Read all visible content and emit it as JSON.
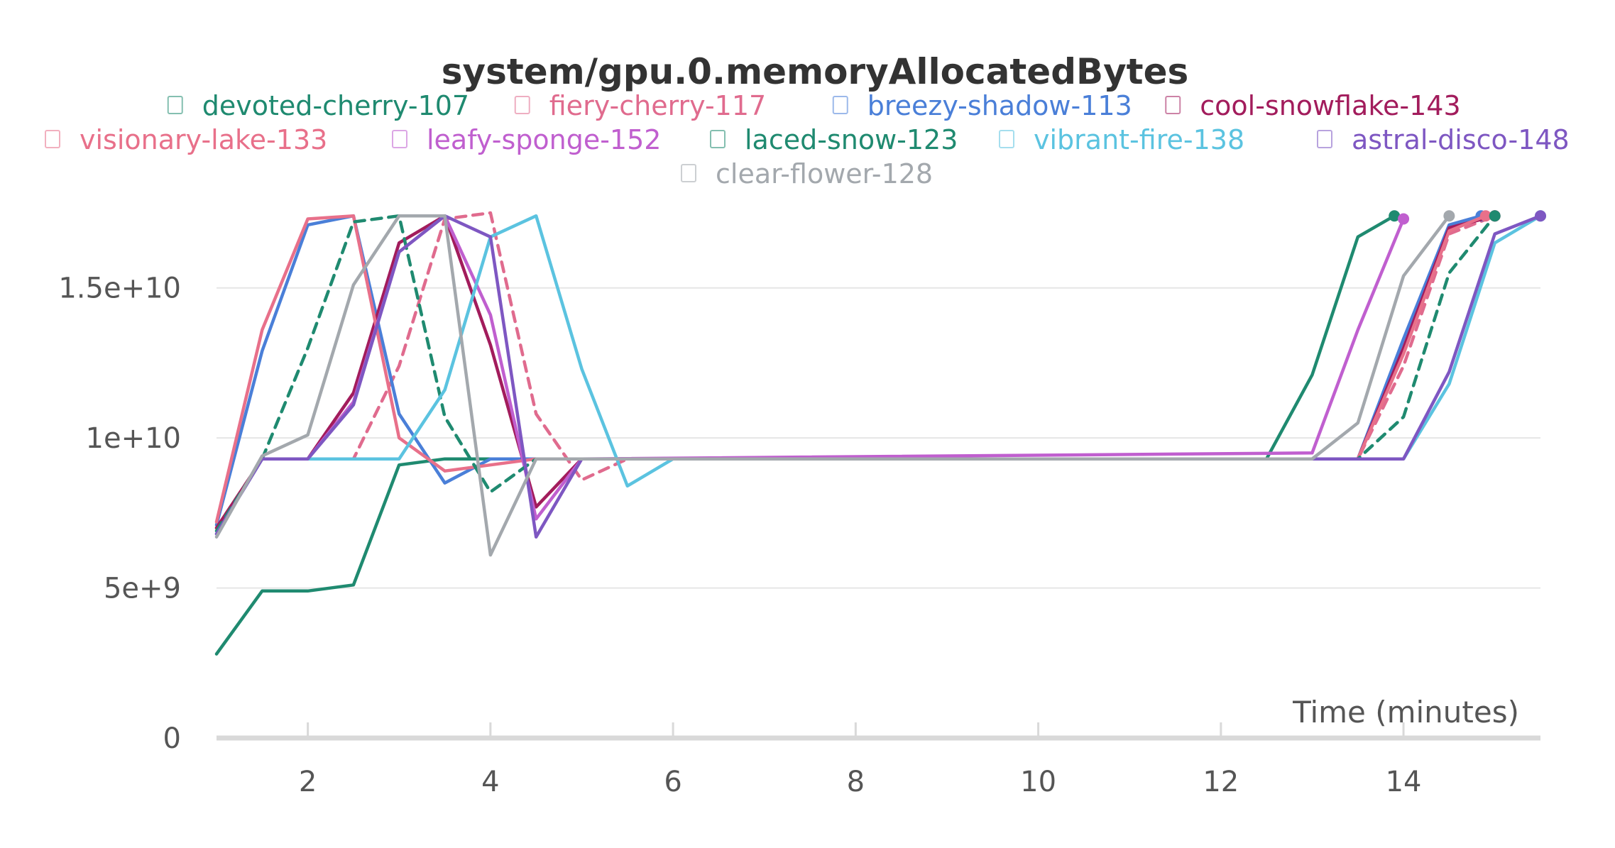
{
  "chart_data": {
    "type": "line",
    "title": "system/gpu.0.memoryAllocatedBytes",
    "xlabel": "Time (minutes)",
    "ylabel": "",
    "xlim": [
      1,
      15.5
    ],
    "ylim": [
      0,
      17500000000
    ],
    "x_ticks": [
      2,
      4,
      6,
      8,
      10,
      12,
      14
    ],
    "x_tick_labels": [
      "2",
      "4",
      "6",
      "8",
      "10",
      "12",
      "14"
    ],
    "y_ticks": [
      0,
      5000000000,
      10000000000,
      15000000000
    ],
    "y_tick_labels": [
      "0",
      "5e+9",
      "1e+10",
      "1.5e+10"
    ],
    "grid": true,
    "legend_position": "top",
    "series": [
      {
        "name": "devoted-cherry-107",
        "color": "#1f8a70",
        "dash": false,
        "x": [
          1,
          1.5,
          2,
          2.5,
          3,
          3.5,
          4,
          4.5,
          5,
          12.5,
          13,
          13.5,
          13.9
        ],
        "y": [
          2800000000,
          4900000000,
          4900000000,
          5100000000,
          9100000000,
          9300000000,
          9300000000,
          9300000000,
          9300000000,
          9300000000,
          12100000000,
          16700000000,
          17400000000
        ]
      },
      {
        "name": "fiery-cherry-117",
        "color": "#e06b8e",
        "dash": true,
        "x": [
          1,
          1.5,
          2,
          2.5,
          3,
          3.5,
          4,
          4.5,
          5,
          5.5,
          13,
          13.5,
          14,
          14.5,
          15
        ],
        "y": [
          7000000000,
          9300000000,
          9300000000,
          9300000000,
          12400000000,
          17300000000,
          17500000000,
          10800000000,
          8600000000,
          9300000000,
          9300000000,
          9300000000,
          12400000000,
          16800000000,
          17400000000
        ]
      },
      {
        "name": "breezy-shadow-113",
        "color": "#4a7fd8",
        "dash": false,
        "x": [
          1,
          1.5,
          2,
          2.5,
          3,
          3.5,
          4,
          4.5,
          13,
          13.5,
          14,
          14.5,
          14.85
        ],
        "y": [
          7100000000,
          12900000000,
          17100000000,
          17400000000,
          10800000000,
          8500000000,
          9300000000,
          9300000000,
          9300000000,
          9300000000,
          13300000000,
          17100000000,
          17400000000
        ]
      },
      {
        "name": "cool-snowflake-143",
        "color": "#a21c5c",
        "dash": false,
        "x": [
          1,
          1.5,
          2,
          2.5,
          3,
          3.5,
          4,
          4.5,
          5,
          13,
          13.5,
          14,
          14.5,
          15
        ],
        "y": [
          7000000000,
          9300000000,
          9300000000,
          11500000000,
          16500000000,
          17400000000,
          13100000000,
          7700000000,
          9300000000,
          9300000000,
          9300000000,
          13000000000,
          17000000000,
          17400000000
        ]
      },
      {
        "name": "visionary-lake-133",
        "color": "#e8708a",
        "dash": false,
        "x": [
          1,
          1.5,
          2,
          2.5,
          3,
          3.5,
          4,
          4.5,
          13,
          13.5,
          14,
          14.5,
          14.9
        ],
        "y": [
          7200000000,
          13600000000,
          17300000000,
          17400000000,
          10000000000,
          8900000000,
          9100000000,
          9300000000,
          9300000000,
          9300000000,
          12800000000,
          16900000000,
          17400000000
        ]
      },
      {
        "name": "leafy-sponge-152",
        "color": "#c05fcf",
        "dash": false,
        "x": [
          1,
          1.5,
          2,
          2.5,
          3,
          3.5,
          4,
          4.5,
          5,
          13,
          13.5,
          14
        ],
        "y": [
          6800000000,
          9300000000,
          9300000000,
          11200000000,
          16200000000,
          17400000000,
          14100000000,
          7300000000,
          9300000000,
          9500000000,
          13600000000,
          17300000000
        ]
      },
      {
        "name": "laced-snow-123",
        "color": "#1f8a70",
        "dash": true,
        "x": [
          1,
          1.5,
          2,
          2.5,
          3,
          3.5,
          4,
          4.5,
          13,
          13.5,
          14,
          14.5,
          15
        ],
        "y": [
          6900000000,
          9300000000,
          13000000000,
          17200000000,
          17400000000,
          10700000000,
          8200000000,
          9300000000,
          9300000000,
          9300000000,
          10700000000,
          15500000000,
          17400000000
        ]
      },
      {
        "name": "vibrant-fire-138",
        "color": "#5bc3e0",
        "dash": false,
        "x": [
          1,
          1.5,
          2,
          2.5,
          3,
          3.5,
          4,
          4.5,
          5,
          5.5,
          6,
          13,
          13.5,
          14,
          14.5,
          15,
          15.5
        ],
        "y": [
          6800000000,
          9300000000,
          9300000000,
          9300000000,
          9300000000,
          11600000000,
          16700000000,
          17400000000,
          12300000000,
          8400000000,
          9300000000,
          9300000000,
          9300000000,
          9300000000,
          11800000000,
          16500000000,
          17400000000
        ]
      },
      {
        "name": "astral-disco-148",
        "color": "#7e57c2",
        "dash": false,
        "x": [
          1,
          1.5,
          2,
          2.5,
          3,
          3.5,
          4,
          4.5,
          5,
          13,
          13.5,
          14,
          14.5,
          15,
          15.5
        ],
        "y": [
          6800000000,
          9300000000,
          9300000000,
          11100000000,
          16200000000,
          17400000000,
          16700000000,
          6700000000,
          9300000000,
          9300000000,
          9300000000,
          9300000000,
          12200000000,
          16800000000,
          17400000000
        ]
      },
      {
        "name": "clear-flower-128",
        "color": "#a3a8ad",
        "dash": false,
        "x": [
          1,
          1.5,
          2,
          2.5,
          3,
          3.5,
          4,
          4.5,
          13,
          13.5,
          14,
          14.5
        ],
        "y": [
          6700000000,
          9400000000,
          10100000000,
          15100000000,
          17400000000,
          17400000000,
          6100000000,
          9300000000,
          9300000000,
          10500000000,
          15400000000,
          17400000000
        ]
      }
    ]
  }
}
